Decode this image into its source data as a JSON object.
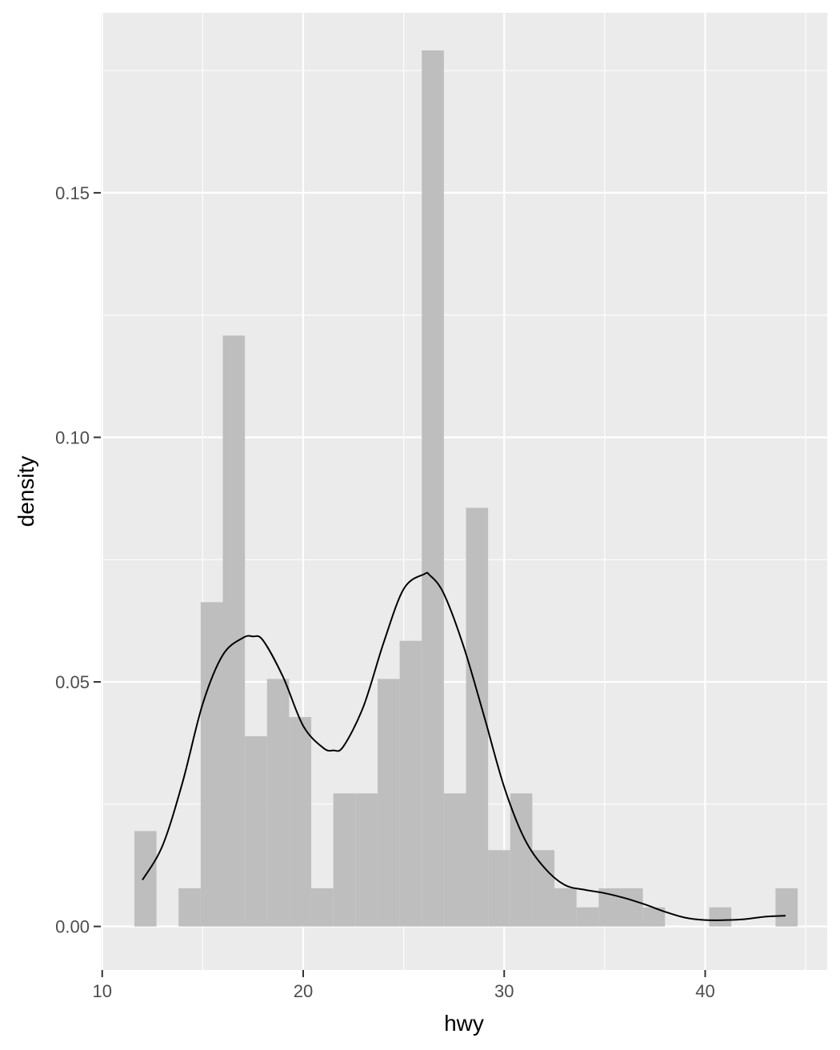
{
  "chart_data": {
    "type": "bar",
    "xlabel": "hwy",
    "ylabel": "density",
    "xlim": [
      9.93,
      46.07
    ],
    "ylim": [
      -0.0089,
      0.1868
    ],
    "x_ticks": [
      10,
      20,
      30,
      40
    ],
    "x_tick_labels": [
      "10",
      "20",
      "30",
      "40"
    ],
    "y_ticks": [
      0.0,
      0.05,
      0.1,
      0.15
    ],
    "y_tick_labels": [
      "0.00",
      "0.05",
      "0.10",
      "0.15"
    ],
    "x_minor_ticks": [
      15,
      25,
      35,
      45
    ],
    "y_minor_ticks": [
      0.025,
      0.075,
      0.125,
      0.175
    ],
    "grid": true,
    "colors": {
      "panel_background": "#ebebeb",
      "grid": "#ffffff",
      "bar_fill": "#bebebe",
      "density_line": "#000000"
    },
    "histogram": {
      "bin_width": 1.1,
      "bin_starts": [
        11.6,
        12.7,
        13.8,
        14.9,
        16.0,
        17.1,
        18.2,
        19.3,
        20.4,
        21.5,
        22.6,
        23.7,
        24.8,
        25.9,
        27.0,
        28.1,
        29.2,
        30.3,
        31.4,
        32.5,
        33.6,
        34.7,
        35.8,
        36.9,
        38.0,
        39.1,
        40.2,
        41.3,
        42.4,
        43.5
      ],
      "density": [
        0.0195,
        0.0,
        0.0078,
        0.0663,
        0.1208,
        0.0389,
        0.0506,
        0.0428,
        0.0078,
        0.0272,
        0.0272,
        0.0506,
        0.0584,
        0.1791,
        0.0272,
        0.0856,
        0.0156,
        0.0272,
        0.0156,
        0.0078,
        0.0039,
        0.0078,
        0.0078,
        0.0039,
        0.0,
        0.0,
        0.0039,
        0.0,
        0.0,
        0.0078
      ]
    },
    "density_curve": {
      "x": [
        12.0,
        13.0,
        14.0,
        15.0,
        16.0,
        17.0,
        17.5,
        18.0,
        19.0,
        20.0,
        21.0,
        21.5,
        22.0,
        23.0,
        24.0,
        25.0,
        26.0,
        26.3,
        27.0,
        28.0,
        29.0,
        30.0,
        31.0,
        32.0,
        33.0,
        34.0,
        35.0,
        36.0,
        37.0,
        38.0,
        39.0,
        40.0,
        41.0,
        42.0,
        43.0,
        44.0
      ],
      "y": [
        0.0095,
        0.0165,
        0.0295,
        0.0455,
        0.0555,
        0.059,
        0.0593,
        0.0585,
        0.051,
        0.041,
        0.0365,
        0.036,
        0.0368,
        0.045,
        0.058,
        0.069,
        0.072,
        0.0718,
        0.068,
        0.057,
        0.043,
        0.0285,
        0.018,
        0.012,
        0.0085,
        0.0075,
        0.0068,
        0.0058,
        0.0045,
        0.003,
        0.0018,
        0.0013,
        0.0013,
        0.0015,
        0.002,
        0.0022
      ]
    }
  }
}
